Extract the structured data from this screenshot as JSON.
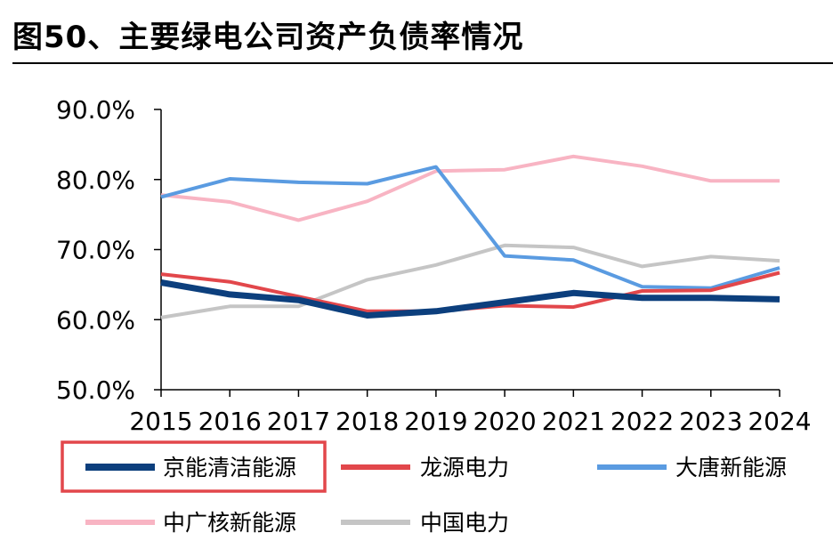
{
  "title": "图50、主要绿电公司资产负债率情况",
  "chart_data": {
    "type": "line",
    "categories": [
      "2015",
      "2016",
      "2017",
      "2018",
      "2019",
      "2020",
      "2021",
      "2022",
      "2023",
      "2024"
    ],
    "ylim": [
      50,
      90
    ],
    "yticks": [
      "50.0%",
      "60.0%",
      "70.0%",
      "80.0%",
      "90.0%"
    ],
    "ytick_values": [
      50,
      60,
      70,
      80,
      90
    ],
    "grid": false,
    "legend_position": "bottom",
    "highlighted_series": "京能清洁能源",
    "highlight_color": "#e2474b",
    "series": [
      {
        "name": "京能清洁能源",
        "color": "#0c3f7d",
        "values": [
          65.3,
          63.6,
          62.8,
          60.6,
          61.2,
          62.5,
          63.8,
          63.1,
          63.1,
          62.9
        ]
      },
      {
        "name": "龙源电力",
        "color": "#e2474b",
        "values": [
          66.5,
          65.4,
          63.3,
          61.2,
          61.2,
          62.0,
          61.8,
          64.1,
          64.2,
          66.7
        ]
      },
      {
        "name": "大唐新能源",
        "color": "#5a9be1",
        "values": [
          77.5,
          80.1,
          79.6,
          79.4,
          81.8,
          69.1,
          68.5,
          64.7,
          64.5,
          67.4
        ]
      },
      {
        "name": "中广核新能源",
        "color": "#f8b4c3",
        "values": [
          77.8,
          76.8,
          74.2,
          76.9,
          81.2,
          81.4,
          83.3,
          81.9,
          79.8,
          79.8
        ]
      },
      {
        "name": "中国电力",
        "color": "#c5c5c5",
        "values": [
          60.3,
          61.9,
          61.9,
          65.7,
          67.8,
          70.6,
          70.3,
          67.6,
          69.0,
          68.4
        ]
      }
    ]
  }
}
